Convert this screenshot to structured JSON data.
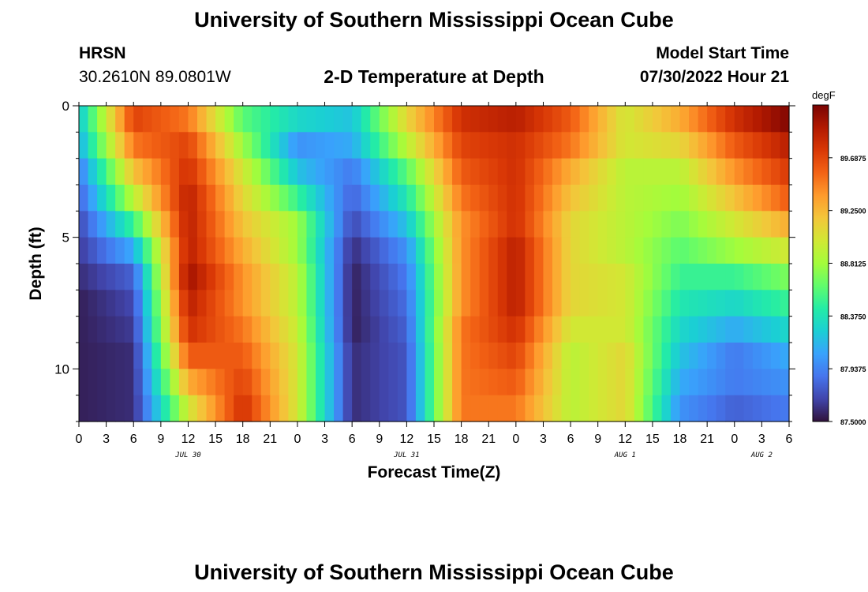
{
  "page": {
    "title": "University of Southern Mississippi Ocean Cube",
    "title_repeat": "University of Southern Mississippi Ocean Cube",
    "station": "HRSN",
    "coords": "30.2610N  89.0801W",
    "subtitle": "2-D Temperature at Depth",
    "model_start_label": "Model Start Time",
    "model_start_value": "07/30/2022 Hour 21"
  },
  "chart_data": {
    "type": "heatmap",
    "title": "2-D Temperature at Depth",
    "xlabel": "Forecast Time(Z)",
    "ylabel": "Depth (ft)",
    "x_tick_labels": [
      "0",
      "3",
      "6",
      "9",
      "12",
      "15",
      "18",
      "21",
      "0",
      "3",
      "6",
      "9",
      "12",
      "15",
      "18",
      "21",
      "0",
      "3",
      "6",
      "9",
      "12",
      "15",
      "18",
      "21",
      "0",
      "3",
      "6"
    ],
    "date_labels": [
      "JUL 30",
      "JUL 31",
      "AUG 1",
      "AUG 2"
    ],
    "y_tick_labels": [
      "0",
      "5",
      "10"
    ],
    "ylim": [
      0,
      12
    ],
    "colorbar": {
      "unit": "degF",
      "range": [
        87.5,
        90.125
      ],
      "tick_labels": [
        "89.6875",
        "89.2500",
        "88.8125",
        "88.3750",
        "87.9375",
        "87.5000"
      ],
      "colors": [
        "#30123b",
        "#4145ab",
        "#4675ed",
        "#39a2fc",
        "#1bcfd4",
        "#24eca6",
        "#61fc6c",
        "#a4fc3b",
        "#d1e834",
        "#f3c63a",
        "#fe9b2d",
        "#f36315",
        "#d93806",
        "#b11901",
        "#7a0403"
      ]
    },
    "depth_rows_ft": [
      0.5,
      1.5,
      2.5,
      3.5,
      4.5,
      5.5,
      6.5,
      7.5,
      8.5,
      9.5,
      10.5,
      11.5
    ],
    "hours": [
      0,
      6,
      12,
      18,
      24,
      30,
      36,
      42,
      48,
      54,
      60,
      66,
      72,
      78
    ],
    "values_degF": [
      [
        88.2,
        89.7,
        89.5,
        88.6,
        88.3,
        88.2,
        89.1,
        89.8,
        89.9,
        89.6,
        89.0,
        89.3,
        89.8,
        90.1
      ],
      [
        88.1,
        89.5,
        89.7,
        88.8,
        88.0,
        88.1,
        88.9,
        89.7,
        89.8,
        89.5,
        89.0,
        89.1,
        89.6,
        89.9
      ],
      [
        87.9,
        89.2,
        89.8,
        89.0,
        88.2,
        87.9,
        88.6,
        89.6,
        89.8,
        89.3,
        88.9,
        88.9,
        89.4,
        89.75
      ],
      [
        87.8,
        88.9,
        89.9,
        89.1,
        88.5,
        87.8,
        88.4,
        89.5,
        89.8,
        89.2,
        88.9,
        88.8,
        89.2,
        89.6
      ],
      [
        87.7,
        88.5,
        89.9,
        89.2,
        88.8,
        87.7,
        88.2,
        89.4,
        89.8,
        89.1,
        88.9,
        88.7,
        89.0,
        89.3
      ],
      [
        87.65,
        88.1,
        89.9,
        89.3,
        88.8,
        87.6,
        88.0,
        89.4,
        89.9,
        89.1,
        88.9,
        88.6,
        88.8,
        89.0
      ],
      [
        87.6,
        87.8,
        90.0,
        89.4,
        88.9,
        87.55,
        87.9,
        89.4,
        89.9,
        89.1,
        89.0,
        88.5,
        88.5,
        88.7
      ],
      [
        87.55,
        87.7,
        89.9,
        89.4,
        88.9,
        87.55,
        87.85,
        89.4,
        89.9,
        89.1,
        89.0,
        88.4,
        88.3,
        88.5
      ],
      [
        87.55,
        87.65,
        89.8,
        89.5,
        88.95,
        87.55,
        87.8,
        89.5,
        89.8,
        89.0,
        89.0,
        88.3,
        88.1,
        88.3
      ],
      [
        87.55,
        87.6,
        89.6,
        89.6,
        89.0,
        87.6,
        87.75,
        89.5,
        89.7,
        88.9,
        89.1,
        88.2,
        87.9,
        88.1
      ],
      [
        87.55,
        87.6,
        89.3,
        89.7,
        89.0,
        87.6,
        87.75,
        89.5,
        89.6,
        88.9,
        89.1,
        88.1,
        87.9,
        88.0
      ],
      [
        87.55,
        87.6,
        89.0,
        89.8,
        89.0,
        87.6,
        87.75,
        89.5,
        89.5,
        88.9,
        89.1,
        88.0,
        87.8,
        87.9
      ]
    ]
  }
}
